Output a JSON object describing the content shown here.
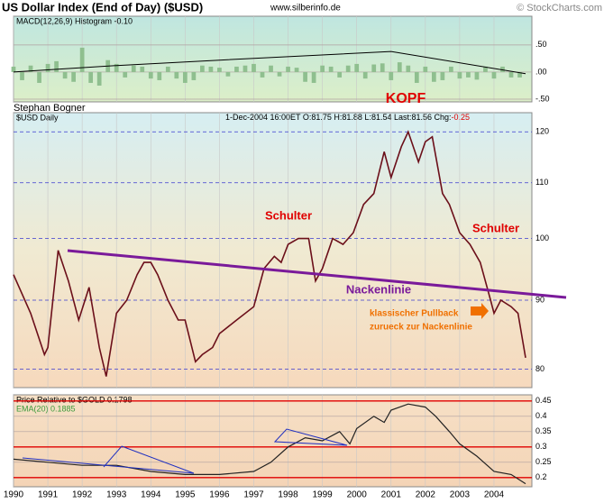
{
  "header": {
    "title": "US Dollar Index (End of Day) ($USD)",
    "source": "www.silberinfo.de",
    "copyright": "© StockCharts.com",
    "author": "Stephan Bogner"
  },
  "chart_data": [
    {
      "type": "bar",
      "title": "MACD(12,26,9) Histogram -0.10",
      "color": "#8fbf8f",
      "x": [
        1990,
        1990.25,
        1990.5,
        1990.75,
        1991,
        1991.25,
        1991.5,
        1991.75,
        1992,
        1992.25,
        1992.5,
        1992.75,
        1993,
        1993.25,
        1993.5,
        1993.75,
        1994,
        1994.25,
        1994.5,
        1994.75,
        1995,
        1995.25,
        1995.5,
        1995.75,
        1996,
        1996.25,
        1996.5,
        1996.75,
        1997,
        1997.25,
        1997.5,
        1997.75,
        1998,
        1998.25,
        1998.5,
        1998.75,
        1999,
        1999.25,
        1999.5,
        1999.75,
        2000,
        2000.25,
        2000.5,
        2000.75,
        2001,
        2001.25,
        2001.5,
        2001.75,
        2002,
        2002.25,
        2002.5,
        2002.75,
        2003,
        2003.25,
        2003.5,
        2003.75,
        2004,
        2004.25,
        2004.5,
        2004.75
      ],
      "values": [
        0.1,
        -0.15,
        0.12,
        -0.2,
        0.15,
        0.2,
        -0.12,
        -0.18,
        0.45,
        -0.2,
        -0.25,
        0.22,
        0.15,
        -0.1,
        0.12,
        0.1,
        -0.12,
        -0.15,
        0.1,
        -0.12,
        -0.2,
        -0.15,
        0.12,
        0.1,
        0.08,
        -0.08,
        0.1,
        0.12,
        0.15,
        -0.1,
        0.12,
        -0.08,
        0.1,
        0.08,
        -0.18,
        -0.2,
        0.12,
        0.1,
        -0.1,
        0.12,
        0.15,
        -0.12,
        0.14,
        0.16,
        -0.15,
        0.18,
        0.12,
        -0.2,
        0.1,
        -0.18,
        -0.15,
        0.1,
        -0.12,
        -0.1,
        -0.14,
        0.1,
        -0.12,
        0.1,
        -0.1,
        -0.1
      ],
      "line": {
        "color": "#000000",
        "x": [
          1990,
          1993,
          1996,
          2001,
          2004.92
        ],
        "values": [
          0,
          0.12,
          0.22,
          0.38,
          -0.03
        ]
      },
      "xlim": [
        1990,
        2004.92
      ],
      "ylim": [
        -0.55,
        1.03
      ],
      "yticks": [
        {
          "value": 0.5,
          "label": ".50"
        },
        {
          "value": 0,
          "label": ".00"
        },
        {
          "value": -0.5,
          "label": "-.50"
        }
      ]
    },
    {
      "type": "line",
      "title": "$USD Daily",
      "quote": "1-Dec-2004 16:00ET O:81.75 H:81.88 L:81.54 Last:81.56 Chg:",
      "change": "-0.25",
      "color": "#6b0f1a",
      "log": true,
      "grid": true,
      "x": [
        1990,
        1990.5,
        1990.9,
        1991,
        1991.3,
        1991.6,
        1991.9,
        1992.2,
        1992.5,
        1992.7,
        1993,
        1993.3,
        1993.6,
        1993.8,
        1994,
        1994.2,
        1994.5,
        1994.8,
        1995,
        1995.3,
        1995.5,
        1995.8,
        1996,
        1996.5,
        1997,
        1997.3,
        1997.6,
        1997.8,
        1998,
        1998.3,
        1998.6,
        1998.8,
        1999,
        1999.3,
        1999.6,
        1999.9,
        2000.2,
        2000.5,
        2000.8,
        2001,
        2001.3,
        2001.5,
        2001.8,
        2002,
        2002.2,
        2002.5,
        2002.7,
        2003,
        2003.3,
        2003.6,
        2003.9,
        2004,
        2004.2,
        2004.5,
        2004.7,
        2004.92
      ],
      "values": [
        94,
        88,
        82,
        83,
        98,
        93,
        87,
        92,
        83,
        79,
        88,
        90,
        94,
        96,
        96,
        94,
        90,
        87,
        87,
        81,
        82,
        83,
        85,
        87,
        89,
        95,
        97,
        96,
        99,
        100,
        100,
        93,
        95,
        100,
        99,
        101,
        106,
        108,
        116,
        111,
        117,
        120,
        114,
        118,
        119,
        108,
        106,
        101,
        99,
        96,
        90,
        88,
        90,
        89,
        88,
        81.56
      ],
      "xlim": [
        1990,
        2004.92
      ],
      "ylim": [
        77.5,
        124
      ],
      "yticks": [
        80,
        90,
        100,
        110,
        120
      ],
      "annotations": [
        {
          "text": "KOPF",
          "color": "#e00000"
        },
        {
          "text": "Schulter",
          "color": "#e00000"
        },
        {
          "text": "Schulter",
          "color": "#e00000"
        },
        {
          "text": "Nackenlinie",
          "color": "#7a1a9a"
        },
        {
          "text": "klassischer Pullback",
          "color": "#f07000"
        },
        {
          "text": "zurueck zur Nackenlinie",
          "color": "#f07000"
        }
      ]
    },
    {
      "type": "line",
      "title": "Price Relative to $GOLD 0.1798",
      "subtitle": "EMA(20) 0.1885",
      "color": "#222222",
      "grid": true,
      "x": [
        1990,
        1991,
        1992,
        1993,
        1994,
        1995,
        1996,
        1997,
        1997.5,
        1998,
        1998.5,
        1999,
        1999.5,
        1999.8,
        2000,
        2000.5,
        2000.8,
        2001,
        2001.5,
        2002,
        2002.3,
        2002.7,
        2003,
        2003.5,
        2004,
        2004.5,
        2004.92
      ],
      "values": [
        0.26,
        0.25,
        0.24,
        0.24,
        0.22,
        0.21,
        0.21,
        0.22,
        0.25,
        0.3,
        0.33,
        0.32,
        0.35,
        0.31,
        0.36,
        0.4,
        0.38,
        0.42,
        0.44,
        0.43,
        0.4,
        0.35,
        0.31,
        0.27,
        0.22,
        0.21,
        0.18
      ],
      "xlim": [
        1990,
        2004.92
      ],
      "ylim": [
        0.17,
        0.47
      ],
      "yticks": [
        0.2,
        0.25,
        0.3,
        0.35,
        0.4,
        0.45
      ],
      "xticks": [
        1990,
        1991,
        1992,
        1993,
        1994,
        1995,
        1996,
        1997,
        1998,
        1999,
        2000,
        2001,
        2002,
        2003,
        2004
      ]
    }
  ]
}
